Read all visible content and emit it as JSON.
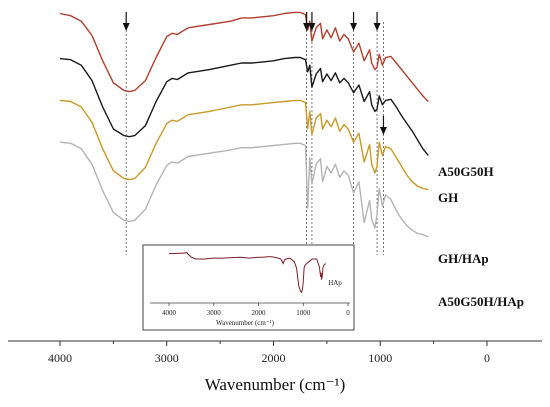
{
  "chart_data": {
    "type": "line",
    "title": "",
    "xlabel": "Wavenumber (cm⁻¹)",
    "ylabel": "",
    "xlim": [
      4500,
      0
    ],
    "x_ticks": [
      "4000",
      "3000",
      "2000",
      "1000",
      "0"
    ],
    "x_tick_values": [
      4000,
      3000,
      2000,
      1000,
      0
    ],
    "y_ticks": false,
    "grid": false,
    "legend": "labels at right end of curves",
    "series": [
      {
        "name": "A50G50H",
        "color": "#b0402f",
        "offset": 100,
        "x": [
          4000,
          3900,
          3800,
          3700,
          3600,
          3500,
          3400,
          3350,
          3300,
          3200,
          3100,
          3000,
          2950,
          2900,
          2800,
          2600,
          2400,
          2300,
          2200,
          2100,
          2000,
          1900,
          1800,
          1750,
          1700,
          1680,
          1660,
          1640,
          1600,
          1560,
          1540,
          1500,
          1460,
          1420,
          1380,
          1340,
          1300,
          1250,
          1200,
          1150,
          1100,
          1080,
          1050,
          1030,
          1010,
          980,
          950,
          900,
          850,
          800,
          750,
          700,
          650,
          600,
          550
        ],
        "values": [
          95,
          93,
          88,
          75,
          52,
          32,
          25,
          24,
          25,
          34,
          55,
          74,
          77,
          76,
          82,
          85,
          88,
          91,
          91,
          92,
          93,
          95,
          96,
          96,
          94,
          80,
          88,
          70,
          82,
          86,
          72,
          80,
          73,
          82,
          70,
          76,
          72,
          60,
          68,
          52,
          62,
          50,
          44,
          46,
          58,
          48,
          55,
          56,
          50,
          44,
          38,
          32,
          26,
          20,
          15
        ]
      },
      {
        "name": "GH",
        "color": "#1a1a1a",
        "offset": 60,
        "x": [
          4000,
          3900,
          3800,
          3700,
          3600,
          3500,
          3400,
          3350,
          3300,
          3200,
          3100,
          3000,
          2950,
          2900,
          2800,
          2600,
          2400,
          2300,
          2200,
          2100,
          2000,
          1900,
          1800,
          1750,
          1700,
          1680,
          1660,
          1640,
          1600,
          1560,
          1540,
          1500,
          1460,
          1420,
          1380,
          1340,
          1300,
          1250,
          1200,
          1150,
          1100,
          1080,
          1050,
          1030,
          1010,
          980,
          950,
          900,
          850,
          800,
          750,
          700,
          650,
          600,
          550
        ],
        "values": [
          94,
          93,
          88,
          74,
          50,
          30,
          24,
          23,
          24,
          33,
          55,
          73,
          76,
          75,
          81,
          84,
          88,
          90,
          90,
          91,
          92,
          94,
          95,
          95,
          93,
          82,
          88,
          68,
          80,
          85,
          73,
          80,
          74,
          81,
          72,
          76,
          72,
          63,
          70,
          55,
          64,
          52,
          46,
          48,
          60,
          52,
          56,
          57,
          50,
          42,
          35,
          28,
          20,
          12,
          6
        ]
      },
      {
        "name": "GH/HAp",
        "color": "#c89a2a",
        "offset": 20,
        "x": [
          4000,
          3900,
          3800,
          3700,
          3600,
          3500,
          3400,
          3350,
          3300,
          3200,
          3100,
          3000,
          2950,
          2900,
          2800,
          2600,
          2400,
          2300,
          2200,
          2100,
          2000,
          1900,
          1800,
          1750,
          1700,
          1680,
          1660,
          1640,
          1600,
          1560,
          1540,
          1500,
          1460,
          1420,
          1380,
          1340,
          1300,
          1250,
          1200,
          1150,
          1100,
          1080,
          1050,
          1030,
          1010,
          980,
          950,
          900,
          850,
          800,
          750,
          700,
          650,
          600,
          550
        ],
        "values": [
          96,
          95,
          90,
          76,
          52,
          32,
          25,
          24,
          25,
          35,
          57,
          75,
          78,
          77,
          83,
          86,
          90,
          92,
          92,
          93,
          94,
          95,
          96,
          96,
          94,
          70,
          86,
          65,
          80,
          84,
          70,
          78,
          72,
          80,
          68,
          74,
          70,
          58,
          66,
          40,
          56,
          38,
          30,
          36,
          58,
          46,
          54,
          52,
          44,
          36,
          28,
          22,
          18,
          16,
          15
        ]
      },
      {
        "name": "A50G50H/HAp",
        "color": "#b4b4b4",
        "offset": -20,
        "x": [
          4000,
          3900,
          3800,
          3700,
          3600,
          3500,
          3400,
          3350,
          3300,
          3200,
          3100,
          3000,
          2950,
          2900,
          2800,
          2600,
          2400,
          2300,
          2200,
          2100,
          2000,
          1900,
          1800,
          1750,
          1700,
          1680,
          1660,
          1640,
          1600,
          1560,
          1540,
          1500,
          1460,
          1420,
          1380,
          1340,
          1300,
          1250,
          1200,
          1150,
          1100,
          1080,
          1050,
          1030,
          1010,
          980,
          950,
          900,
          850,
          800,
          750,
          700,
          650,
          600,
          550
        ],
        "values": [
          98,
          97,
          92,
          78,
          54,
          34,
          27,
          26,
          27,
          37,
          59,
          77,
          80,
          79,
          85,
          88,
          91,
          93,
          93,
          94,
          95,
          96,
          97,
          97,
          95,
          38,
          84,
          60,
          78,
          83,
          62,
          76,
          70,
          78,
          66,
          72,
          68,
          52,
          62,
          25,
          45,
          28,
          20,
          32,
          56,
          40,
          50,
          46,
          36,
          28,
          22,
          18,
          15,
          14,
          12
        ]
      }
    ],
    "reference_lines": [
      3380,
      1690,
      1640,
      1250,
      1030,
      970
    ],
    "arrow_positions": [
      3380,
      1690,
      1640,
      1250,
      1030,
      970
    ],
    "inset": {
      "label": "HAp",
      "xlabel": "Wavenumber (cm⁻¹)",
      "xlim": [
        4500,
        0
      ],
      "x_ticks": [
        "4000",
        "3000",
        "2000",
        "1000",
        "0"
      ],
      "x_tick_values": [
        4000,
        3000,
        2000,
        1000,
        0
      ],
      "color": "#7a1f2b",
      "x": [
        4000,
        3900,
        3800,
        3700,
        3600,
        3570,
        3540,
        3500,
        3400,
        3200,
        3000,
        2800,
        2600,
        2400,
        2200,
        2100,
        2000,
        1900,
        1800,
        1700,
        1600,
        1500,
        1450,
        1420,
        1380,
        1300,
        1200,
        1150,
        1100,
        1060,
        1040,
        1020,
        1000,
        980,
        960,
        900,
        850,
        800,
        700,
        640,
        610,
        600,
        590,
        570,
        560,
        540,
        500
      ],
      "values": [
        92,
        92,
        93,
        93,
        94,
        90,
        88,
        84,
        80,
        80,
        82,
        82,
        83,
        84,
        82,
        83,
        84,
        84,
        85,
        85,
        83,
        80,
        70,
        78,
        80,
        82,
        74,
        60,
        20,
        8,
        6,
        12,
        30,
        60,
        66,
        72,
        76,
        80,
        80,
        62,
        40,
        50,
        34,
        46,
        60,
        66,
        70
      ]
    }
  }
}
